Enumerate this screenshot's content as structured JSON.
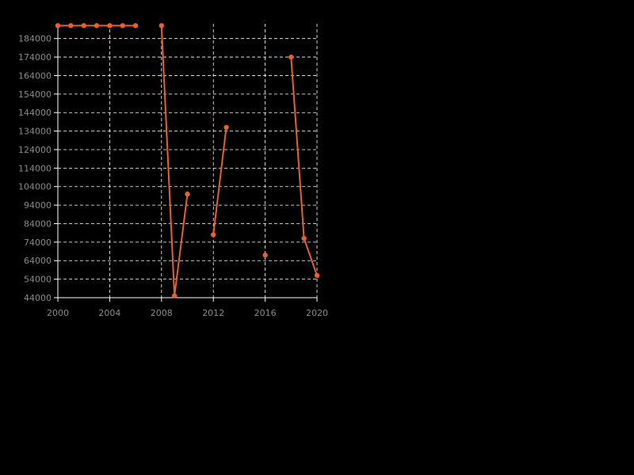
{
  "chart_data": {
    "type": "line",
    "title": "",
    "xlabel": "",
    "ylabel": "",
    "xlim": [
      2000,
      2020
    ],
    "ylim": [
      44000,
      192000
    ],
    "x_ticks": [
      "2000",
      "2004",
      "2008",
      "2012",
      "2016",
      "2020"
    ],
    "y_ticks": [
      "44000",
      "54000",
      "64000",
      "74000",
      "84000",
      "94000",
      "104000",
      "114000",
      "124000",
      "134000",
      "144000",
      "154000",
      "164000",
      "174000",
      "184000"
    ],
    "grid": true,
    "legend": "none",
    "colors": {
      "line": "#e8602c",
      "background": "#000000",
      "grid": "#ffffff",
      "text": "#8a8a8a"
    },
    "series": [
      {
        "x": [
          2000,
          2001,
          2002,
          2003,
          2004,
          2005,
          2006,
          2007,
          2008,
          2009,
          2010,
          2011,
          2012,
          2013,
          2014,
          2015,
          2016,
          2017,
          2018,
          2019,
          2020
        ],
        "y": [
          191000,
          191000,
          191000,
          191000,
          191000,
          191000,
          191000,
          null,
          191000,
          45000,
          100000,
          null,
          78000,
          136000,
          null,
          null,
          67000,
          null,
          174000,
          76000,
          56000
        ]
      }
    ]
  }
}
